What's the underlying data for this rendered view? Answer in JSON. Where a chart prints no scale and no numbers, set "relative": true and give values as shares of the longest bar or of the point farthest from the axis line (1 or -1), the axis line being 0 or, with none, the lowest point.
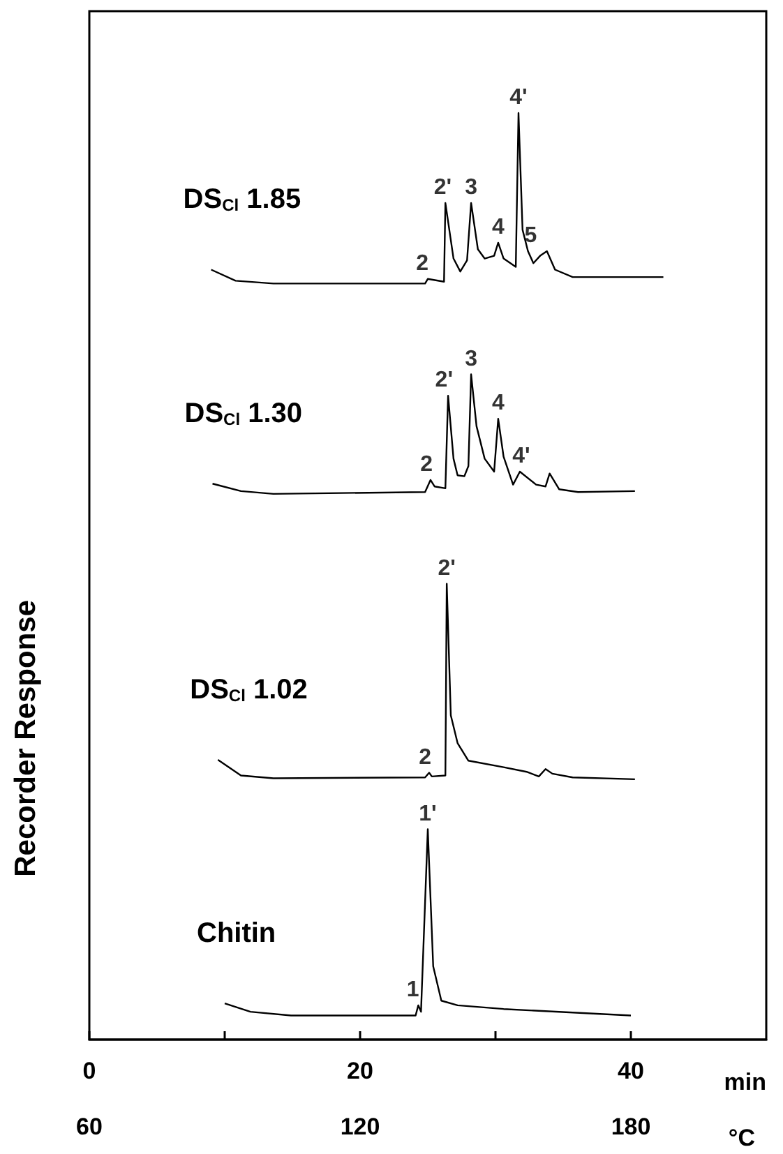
{
  "chart_data": {
    "type": "line",
    "relative": true,
    "xlabel": "min",
    "x2label": "°C",
    "ylabel": "Recorder Response",
    "xlim": [
      0,
      50
    ],
    "xticks": [
      0,
      {
        "value": 10,
        "label": null
      },
      20,
      {
        "value": 30,
        "label": null
      },
      40
    ],
    "x2lim": [
      60,
      210
    ],
    "x2ticks": [
      60,
      120,
      180
    ],
    "series": [
      {
        "name": "DS$_{Cl}$ 1.85",
        "color": "#000000",
        "x": [
          9.0,
          10.8,
          13.6,
          24.8,
          25.0,
          26.2,
          26.3,
          26.9,
          27.4,
          27.9,
          28.2,
          28.7,
          29.2,
          29.9,
          30.2,
          30.6,
          31.5,
          31.7,
          32.0,
          32.4,
          32.8,
          33.3,
          33.8,
          34.4,
          35.7,
          42.4
        ],
        "values": [
          0.831,
          0.819,
          0.816,
          0.816,
          0.821,
          0.818,
          0.903,
          0.843,
          0.829,
          0.841,
          0.903,
          0.853,
          0.843,
          0.846,
          0.86,
          0.843,
          0.834,
          1.0,
          0.874,
          0.851,
          0.838,
          0.846,
          0.851,
          0.831,
          0.823,
          0.823
        ]
      },
      {
        "name": "DS$_{Cl}$ 1.30",
        "color": "#000000",
        "x": [
          9.1,
          11.2,
          13.6,
          24.8,
          25.2,
          25.5,
          26.3,
          26.5,
          26.9,
          27.2,
          27.7,
          28.0,
          28.2,
          28.6,
          29.2,
          29.9,
          30.2,
          30.6,
          31.3,
          31.8,
          33.0,
          33.7,
          34.0,
          34.7,
          36.1,
          40.3
        ],
        "values": [
          0.6,
          0.592,
          0.589,
          0.591,
          0.604,
          0.597,
          0.595,
          0.695,
          0.627,
          0.609,
          0.608,
          0.619,
          0.718,
          0.662,
          0.627,
          0.613,
          0.67,
          0.629,
          0.599,
          0.613,
          0.599,
          0.597,
          0.611,
          0.594,
          0.591,
          0.592
        ]
      },
      {
        "name": "DS$_{Cl}$ 1.02",
        "color": "#000000",
        "x": [
          9.5,
          11.2,
          13.6,
          24.8,
          25.1,
          25.3,
          26.3,
          26.4,
          26.7,
          27.2,
          28.0,
          30.6,
          32.3,
          33.2,
          33.7,
          34.2,
          35.7,
          40.3
        ],
        "values": [
          0.302,
          0.285,
          0.282,
          0.283,
          0.288,
          0.284,
          0.285,
          0.492,
          0.35,
          0.32,
          0.301,
          0.294,
          0.289,
          0.284,
          0.292,
          0.287,
          0.283,
          0.281
        ]
      },
      {
        "name": "Chitin",
        "color": "#000000",
        "x": [
          10.0,
          11.9,
          14.9,
          24.1,
          24.3,
          24.5,
          25.0,
          25.4,
          26.0,
          27.2,
          30.6,
          40.0
        ],
        "values": [
          0.039,
          0.03,
          0.026,
          0.026,
          0.037,
          0.03,
          0.227,
          0.079,
          0.042,
          0.037,
          0.033,
          0.026
        ]
      }
    ],
    "annotations": [
      {
        "text": "2",
        "x": 24.6,
        "y": 0.821
      },
      {
        "text": "2'",
        "x": 26.1,
        "y": 0.903
      },
      {
        "text": "3",
        "x": 28.2,
        "y": 0.903
      },
      {
        "text": "4",
        "x": 30.2,
        "y": 0.86
      },
      {
        "text": "4'",
        "x": 31.7,
        "y": 1.0
      },
      {
        "text": "5",
        "x": 32.6,
        "y": 0.851
      },
      {
        "text": "2",
        "x": 24.9,
        "y": 0.604
      },
      {
        "text": "2'",
        "x": 26.2,
        "y": 0.695
      },
      {
        "text": "3",
        "x": 28.2,
        "y": 0.718
      },
      {
        "text": "4",
        "x": 30.2,
        "y": 0.67
      },
      {
        "text": "4'",
        "x": 31.9,
        "y": 0.613
      },
      {
        "text": "2",
        "x": 24.8,
        "y": 0.288
      },
      {
        "text": "2'",
        "x": 26.4,
        "y": 0.492
      },
      {
        "text": "1",
        "x": 23.9,
        "y": 0.037
      },
      {
        "text": "1'",
        "x": 25.0,
        "y": 0.227
      }
    ]
  }
}
